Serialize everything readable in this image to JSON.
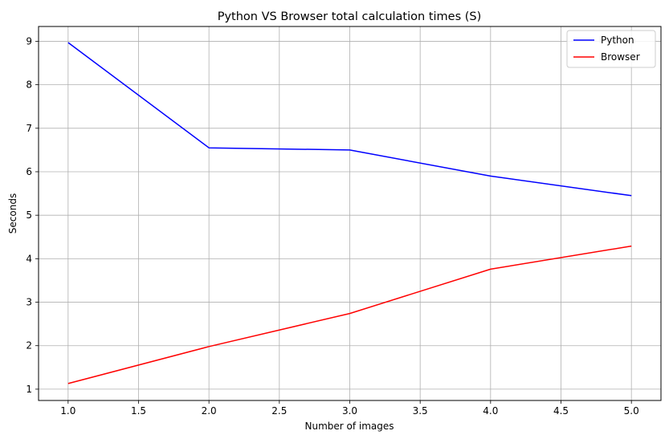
{
  "chart_data": {
    "type": "line",
    "title": "Python VS Browser total calculation times (S)",
    "xlabel": "Number of images",
    "ylabel": "Seconds",
    "x": [
      1.0,
      2.0,
      3.0,
      4.0,
      5.0
    ],
    "xlim": [
      0.79,
      5.21
    ],
    "ylim": [
      0.74,
      9.34
    ],
    "xticks": [
      1.0,
      1.5,
      2.0,
      2.5,
      3.0,
      3.5,
      4.0,
      4.5,
      5.0
    ],
    "xtick_labels": [
      "1.0",
      "1.5",
      "2.0",
      "2.5",
      "3.0",
      "3.5",
      "4.0",
      "4.5",
      "5.0"
    ],
    "yticks": [
      1,
      2,
      3,
      4,
      5,
      6,
      7,
      8,
      9
    ],
    "ytick_labels": [
      "1",
      "2",
      "3",
      "4",
      "5",
      "6",
      "7",
      "8",
      "9"
    ],
    "grid": true,
    "legend_position": "top-right",
    "series": [
      {
        "name": "Python",
        "color": "#0000ff",
        "values": [
          8.97,
          6.55,
          6.5,
          5.9,
          5.45
        ]
      },
      {
        "name": "Browser",
        "color": "#ff0000",
        "values": [
          1.13,
          1.98,
          2.74,
          3.76,
          4.29
        ]
      }
    ]
  }
}
